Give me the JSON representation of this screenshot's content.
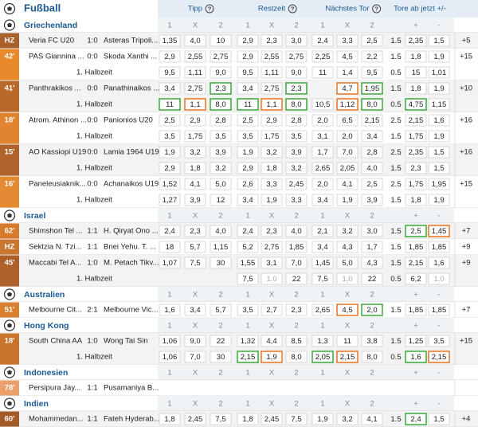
{
  "header": {
    "title": "Fußball",
    "columns": [
      "Tipp",
      "Restzeit",
      "Nächstes Tor",
      "Tore ab jetzt +/-"
    ],
    "help": "?"
  },
  "odds_columns": [
    "1",
    "X",
    "2",
    "1",
    "X",
    "2",
    "1",
    "X",
    "2",
    "+",
    "-"
  ],
  "leagues": [
    {
      "name": "Griechenland",
      "matches": [
        {
          "time": "HZ",
          "time_color": "#a9612b",
          "home": "Veria FC U20",
          "score": "1:0",
          "away": "Asteras Tripoli...",
          "odds": [
            "1,35",
            "4,0",
            "10",
            "2,9",
            "2,3",
            "3,0",
            "2,4",
            "3,3",
            "2,5",
            "1.5",
            "2,35",
            "1,5"
          ],
          "more": "+5",
          "halves": []
        },
        {
          "time": "42'",
          "time_color": "#e8892c",
          "home": "PAS Giannina ...",
          "score": "0:0",
          "away": "Skoda Xanthi ...",
          "odds": [
            "2,9",
            "2,55",
            "2,75",
            "2,9",
            "2,55",
            "2,75",
            "2,25",
            "4,5",
            "2,2",
            "1.5",
            "1,8",
            "1,9"
          ],
          "more": "+15",
          "halves": [
            {
              "label": "1. Halbzeit",
              "odds": [
                "9,5",
                "1,11",
                "9,0",
                "9,5",
                "1,11",
                "9,0",
                "11",
                "1,4",
                "9,5",
                "0.5",
                "15",
                "1,01"
              ]
            }
          ]
        },
        {
          "time": "41'",
          "time_color": "#b8692c",
          "home": "Panthrakikos ...",
          "score": "0:0",
          "away": "Panathinaikos ...",
          "odds": [
            "3,4",
            "2,75",
            {
              "text": "2,3",
              "box": "#3aa83a"
            },
            "3,4",
            "2,75",
            {
              "text": "2,3",
              "box": "#3aa83a"
            },
            null,
            {
              "text": "4,7",
              "box": "#e8741e"
            },
            {
              "text": "1,95",
              "box": "#3aa83a"
            },
            "1.5",
            "1,8",
            "1,9"
          ],
          "more": "+10",
          "halves": [
            {
              "label": "1. Halbzeit",
              "odds": [
                {
                  "text": "11",
                  "box": "#3aa83a"
                },
                {
                  "text": "1,1",
                  "box": "#e8741e"
                },
                {
                  "text": "8,0",
                  "box": "#3aa83a"
                },
                {
                  "text": "11",
                  "box": "#3aa83a"
                },
                {
                  "text": "1,1",
                  "box": "#e8741e"
                },
                {
                  "text": "8,0",
                  "box": "#3aa83a"
                },
                "10,5",
                {
                  "text": "1,12",
                  "box": "#e8741e"
                },
                {
                  "text": "8,0",
                  "box": "#3aa83a"
                },
                "0.5",
                {
                  "text": "4,75",
                  "box": "#3aa83a"
                },
                "1,15"
              ]
            }
          ]
        },
        {
          "time": "18'",
          "time_color": "#e08430",
          "home": "Atrom. Athinon ...",
          "score": "0:0",
          "away": "Panionios U20",
          "odds": [
            "2,5",
            "2,9",
            "2,8",
            "2,5",
            "2,9",
            "2,8",
            "2,0",
            "6,5",
            "2,15",
            "2.5",
            "2,15",
            "1,6"
          ],
          "more": "+16",
          "halves": [
            {
              "label": "1. Halbzeit",
              "odds": [
                "3,5",
                "1,75",
                "3,5",
                "3,5",
                "1,75",
                "3,5",
                "3,1",
                "2,0",
                "3,4",
                "1.5",
                "1,75",
                "1,9"
              ]
            }
          ]
        },
        {
          "time": "15'",
          "time_color": "#b0642b",
          "home": "AO Kassiopi U19",
          "score": "0:0",
          "away": "Lamia 1964 U19",
          "odds": [
            "1,9",
            "3,2",
            "3,9",
            "1,9",
            "3,2",
            "3,9",
            "1,7",
            "7,0",
            "2,8",
            "2.5",
            "2,35",
            "1,5"
          ],
          "more": "+16",
          "halves": [
            {
              "label": "1. Halbzeit",
              "odds": [
                "2,9",
                "1,8",
                "3,2",
                "2,9",
                "1,8",
                "3,2",
                "2,65",
                "2,05",
                "4,0",
                "1.5",
                "2,3",
                "1,5"
              ]
            }
          ]
        },
        {
          "time": "16'",
          "time_color": "#e38a32",
          "home": "Paneleusiaknik...",
          "score": "0:0",
          "away": "Achanaikos U19",
          "odds": [
            "1,52",
            "4,1",
            "5,0",
            "2,6",
            "3,3",
            "2,45",
            "2,0",
            "4,1",
            "2,5",
            "2.5",
            "1,75",
            "1,95"
          ],
          "more": "+15",
          "halves": [
            {
              "label": "1. Halbzeit",
              "odds": [
                "1,27",
                "3,9",
                "12",
                "3,4",
                "1,9",
                "3,3",
                "3,4",
                "1,9",
                "3,9",
                "1.5",
                "1,8",
                "1,9"
              ]
            }
          ]
        }
      ]
    },
    {
      "name": "Israel",
      "matches": [
        {
          "time": "62'",
          "time_color": "#d67a2c",
          "home": "Shimshon Tel ...",
          "score": "1:1",
          "away": "H. Qiryat Ono ...",
          "odds": [
            "2,4",
            "2,3",
            "4,0",
            "2,4",
            "2,3",
            "4,0",
            "2,1",
            "3,2",
            "3,0",
            "1.5",
            {
              "text": "2,5",
              "box": "#3aa83a"
            },
            {
              "text": "1,45",
              "box": "#e8741e"
            }
          ],
          "more": "+7",
          "halves": []
        },
        {
          "time": "HZ",
          "time_color": "#c9772e",
          "home": "Sektzia N. Tzi...",
          "score": "1:1",
          "away": "Bnei Yehu. T. ...",
          "odds": [
            "18",
            "5,7",
            "1,15",
            "5,2",
            "2,75",
            "1,85",
            "3,4",
            "4,3",
            "1,7",
            "1.5",
            "1,85",
            "1,85"
          ],
          "more": "+9",
          "halves": []
        },
        {
          "time": "45'",
          "time_color": "#ad6029",
          "home": "Maccabi Tel A...",
          "score": "1:0",
          "away": "M. Petach Tikv...",
          "odds": [
            "1,07",
            "7,5",
            "30",
            "1,55",
            "3,1",
            "7,0",
            "1,45",
            "5,0",
            "4,3",
            "1.5",
            "2,15",
            "1,6"
          ],
          "more": "+9",
          "halves": [
            {
              "label": "1. Halbzeit",
              "odds": [
                null,
                null,
                null,
                "7,5",
                {
                  "text": "1,0",
                  "color": "#aaaaaa"
                },
                "22",
                "7,5",
                {
                  "text": "1,0",
                  "color": "#aaaaaa"
                },
                "22",
                "0.5",
                "6,2",
                {
                  "text": "1,0",
                  "color": "#aaaaaa"
                }
              ]
            }
          ]
        }
      ]
    },
    {
      "name": "Australien",
      "matches": [
        {
          "time": "51'",
          "time_color": "#d98030",
          "home": "Melbourne Cit...",
          "score": "2:1",
          "away": "Melbourne Vic...",
          "odds": [
            "1,6",
            "3,4",
            "5,7",
            "3,5",
            "2,7",
            "2,3",
            "2,65",
            {
              "text": "4,5",
              "box": "#e8741e"
            },
            {
              "text": "2,0",
              "box": "#3aa83a"
            },
            "1.5",
            "1,85",
            "1,85"
          ],
          "more": "+7",
          "halves": []
        }
      ]
    },
    {
      "name": "Hong Kong",
      "matches": [
        {
          "time": "18'",
          "time_color": "#c8742c",
          "home": "South China AA",
          "score": "1:0",
          "away": "Wong Tai Sin",
          "odds": [
            "1,06",
            "9,0",
            "22",
            "1,32",
            "4,4",
            "8,5",
            "1,3",
            "11",
            "3,8",
            "1.5",
            "1,25",
            "3,5"
          ],
          "more": "+15",
          "halves": [
            {
              "label": "1. Halbzeit",
              "odds": [
                "1,06",
                "7,0",
                "30",
                {
                  "text": "2,15",
                  "box": "#3aa83a"
                },
                {
                  "text": "1,9",
                  "box": "#e8741e"
                },
                "8,0",
                {
                  "text": "2,05",
                  "box": "#3aa83a"
                },
                {
                  "text": "2,15",
                  "box": "#e8741e"
                },
                "8,0",
                "0.5",
                {
                  "text": "1,6",
                  "box": "#3aa83a"
                },
                {
                  "text": "2,15",
                  "box": "#e8741e"
                }
              ]
            }
          ]
        }
      ]
    },
    {
      "name": "Indonesien",
      "matches": [
        {
          "time": "78'",
          "time_color": "#e9a06a",
          "home": "Persipura Jay...",
          "score": "1:1",
          "away": "Pusamaniya B...",
          "odds": [],
          "more": null,
          "halves": []
        }
      ]
    },
    {
      "name": "Indien",
      "matches": [
        {
          "time": "60'",
          "time_color": "#a35b25",
          "home": "Mohammedan...",
          "score": "1:1",
          "away": "Fateh Hyderab...",
          "odds": [
            "1,8",
            "2,45",
            "7,5",
            "1,8",
            "2,45",
            "7,5",
            "1,9",
            "3,2",
            "4,1",
            "1.5",
            {
              "text": "2,4",
              "box": "#3aa83a"
            },
            "1,5"
          ],
          "more": "+4",
          "halves": []
        }
      ]
    }
  ]
}
